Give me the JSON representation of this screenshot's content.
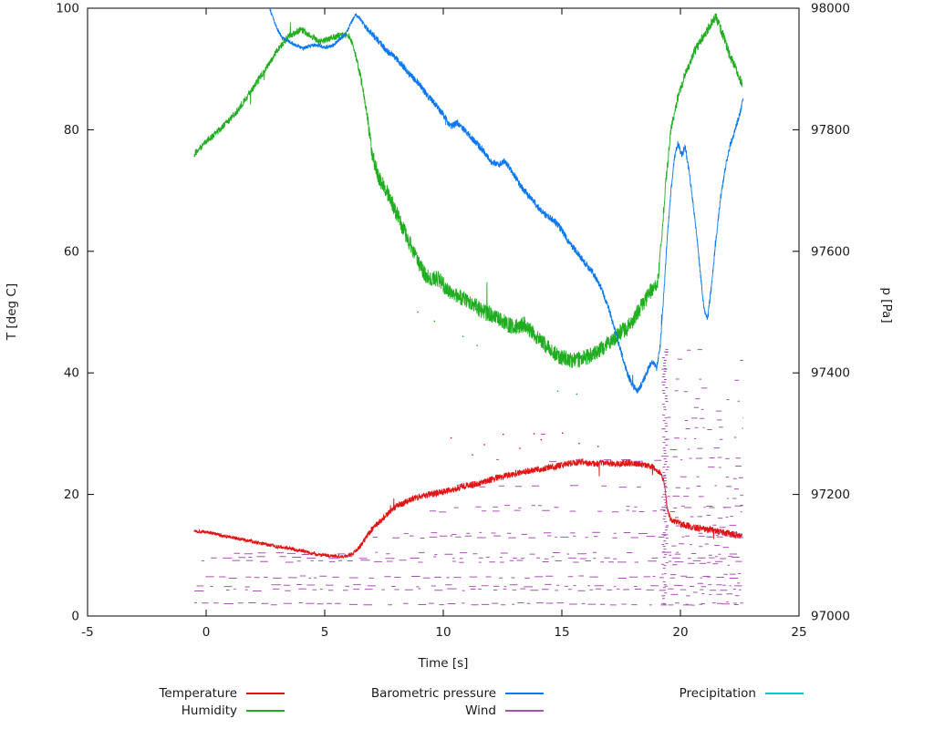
{
  "page": {
    "background": "#ffffff"
  },
  "chart_data": {
    "type": "line",
    "title": "",
    "xlabel": "Time [s]",
    "ylabel_left": "T [deg C]",
    "ylabel_right": "p [Pa]",
    "xlim": [
      -5,
      25
    ],
    "xticks": [
      -5,
      0,
      5,
      10,
      15,
      20,
      25
    ],
    "ylim_left": [
      0,
      100
    ],
    "yticks_left": [
      0,
      20,
      40,
      60,
      80,
      100
    ],
    "ylim_right": [
      97000,
      98000
    ],
    "yticks_right": [
      97000,
      97200,
      97400,
      97600,
      97800,
      98000
    ],
    "grid": false,
    "legend_position": "bottom",
    "series": [
      {
        "name": "Temperature",
        "color": "#e01414",
        "axis": "left",
        "noise": 0.45,
        "noise_x": [
          -0.5,
          6,
          7,
          22.6
        ],
        "noise_v": [
          0.3,
          0.3,
          0.55,
          0.55
        ],
        "x": [
          -0.5,
          0,
          1,
          2,
          3,
          4,
          4.7,
          5.3,
          5.8,
          6.2,
          6.5,
          7,
          7.5,
          8,
          8.7,
          9.4,
          10,
          10.8,
          11.5,
          12.3,
          13,
          13.8,
          14.5,
          15.2,
          15.8,
          16.3,
          16.8,
          17.3,
          17.8,
          18.3,
          18.8,
          19.1,
          19.3,
          19.45,
          19.6,
          20,
          20.5,
          21,
          21.5,
          22,
          22.6
        ],
        "y": [
          14,
          13.8,
          13,
          12.2,
          11.4,
          10.8,
          10.1,
          9.9,
          9.8,
          10.3,
          11.5,
          14.3,
          16.3,
          18,
          19.3,
          20,
          20.4,
          21.3,
          21.8,
          22.8,
          23.4,
          24,
          24.4,
          25,
          25.4,
          25,
          25.2,
          25,
          25.2,
          25,
          24.6,
          23.8,
          22.5,
          17.5,
          15.8,
          15.2,
          14.6,
          14.3,
          14,
          13.6,
          13.2
        ],
        "outliers": [
          [
            10.3,
            29.3
          ],
          [
            11.7,
            28.2
          ],
          [
            12.5,
            29.9
          ],
          [
            13.2,
            27.6
          ],
          [
            14.1,
            29.0
          ],
          [
            15.0,
            30.1
          ],
          [
            15.7,
            28.4
          ],
          [
            16.5,
            27.9
          ],
          [
            11.2,
            26.5
          ],
          [
            13.8,
            30.0
          ]
        ]
      },
      {
        "name": "Humidity",
        "color": "#1fae1f",
        "axis": "left",
        "noise": 1.1,
        "noise_x": [
          -0.5,
          6.3,
          7.2,
          18.9,
          19.6,
          22.6
        ],
        "noise_v": [
          0.55,
          0.55,
          1.35,
          1.35,
          0.8,
          0.8
        ],
        "x": [
          -0.5,
          0,
          0.7,
          1.3,
          2,
          2.5,
          3,
          3.5,
          4,
          4.4,
          4.8,
          5.2,
          5.6,
          6,
          6.2,
          6.5,
          6.8,
          7,
          7.3,
          7.6,
          8,
          8.4,
          8.8,
          9.1,
          9.4,
          9.8,
          10.2,
          10.7,
          11.2,
          11.7,
          12.2,
          12.7,
          13,
          13.4,
          13.8,
          14.2,
          14.6,
          15,
          15.5,
          16,
          16.5,
          17,
          17.4,
          17.8,
          18.2,
          18.6,
          18.9,
          19.05,
          19.2,
          19.4,
          19.6,
          19.9,
          20.2,
          20.6,
          21,
          21.3,
          21.5,
          21.8,
          22.1,
          22.4,
          22.6
        ],
        "y": [
          76,
          78,
          80.5,
          83,
          87,
          90,
          93,
          95.5,
          96.5,
          95.5,
          94.5,
          95,
          95.5,
          95.5,
          94,
          89,
          82,
          76,
          72,
          70,
          66.5,
          63,
          59.5,
          57,
          55.5,
          55.5,
          53.5,
          52.5,
          51.5,
          50,
          49.5,
          48,
          47.5,
          48,
          46.5,
          45,
          43.5,
          42.5,
          42,
          42.5,
          43.5,
          45,
          46.5,
          47.5,
          50,
          52.5,
          54.5,
          55,
          62,
          72,
          80,
          85.5,
          89,
          93,
          95.5,
          97.5,
          98.5,
          95.5,
          92,
          89.5,
          87.5
        ],
        "outliers": [
          [
            8.9,
            50
          ],
          [
            9.6,
            48.5
          ],
          [
            11.4,
            44.5
          ],
          [
            14.8,
            37
          ],
          [
            15.6,
            36.5
          ],
          [
            10.8,
            46
          ]
        ]
      },
      {
        "name": "Barometric pressure",
        "color": "#0a78f0",
        "axis": "right",
        "noise": 5,
        "noise_x": [
          2.65,
          6.5,
          7,
          22.65
        ],
        "noise_v": [
          3,
          3,
          5.5,
          5.5
        ],
        "x": [
          2.65,
          2.8,
          3,
          3.2,
          3.5,
          3.8,
          4.1,
          4.4,
          4.7,
          5,
          5.3,
          5.6,
          5.9,
          6.1,
          6.3,
          6.5,
          6.8,
          7,
          7.3,
          7.6,
          8,
          8.3,
          8.6,
          9,
          9.3,
          9.6,
          10,
          10.3,
          10.6,
          11,
          11.3,
          11.7,
          12,
          12.3,
          12.6,
          13,
          13.3,
          13.7,
          14,
          14.3,
          14.7,
          15,
          15.3,
          15.7,
          16,
          16.3,
          16.6,
          16.9,
          17.1,
          17.35,
          17.6,
          17.8,
          18,
          18.2,
          18.4,
          18.6,
          18.8,
          19,
          19.15,
          19.3,
          19.45,
          19.6,
          19.75,
          19.9,
          20.05,
          20.2,
          20.35,
          20.5,
          20.7,
          20.85,
          21,
          21.15,
          21.3,
          21.5,
          21.7,
          21.9,
          22.1,
          22.3,
          22.5,
          22.65
        ],
        "y": [
          98005,
          97985,
          97965,
          97952,
          97945,
          97938,
          97934,
          97938,
          97940,
          97935,
          97938,
          97948,
          97958,
          97975,
          97990,
          97982,
          97965,
          97958,
          97945,
          97930,
          97918,
          97905,
          97890,
          97875,
          97858,
          97845,
          97825,
          97805,
          97812,
          97795,
          97782,
          97765,
          97748,
          97742,
          97748,
          97725,
          97705,
          97688,
          97672,
          97660,
          97650,
          97635,
          97615,
          97595,
          97580,
          97565,
          97545,
          97515,
          97490,
          97455,
          97420,
          97395,
          97378,
          97370,
          97385,
          97402,
          97420,
          97408,
          97445,
          97530,
          97625,
          97700,
          97755,
          97778,
          97758,
          97772,
          97735,
          97690,
          97620,
          97560,
          97505,
          97490,
          97540,
          97620,
          97690,
          97740,
          97775,
          97800,
          97825,
          97850
        ]
      },
      {
        "name": "Wind",
        "color": "#a851b4",
        "axis": "left",
        "style": "dashes",
        "bands": [
          {
            "y": 2.0,
            "x0": -0.5,
            "x1": 22.6,
            "density": 0.85
          },
          {
            "y": 4.3,
            "x0": -0.5,
            "x1": 22.6,
            "density": 0.75
          },
          {
            "y": 5.0,
            "x0": -0.4,
            "x1": 22.6,
            "density": 0.45
          },
          {
            "y": 6.4,
            "x0": -0.3,
            "x1": 22.6,
            "density": 0.6
          },
          {
            "y": 9.0,
            "x0": -0.2,
            "x1": 22.6,
            "density": 0.5
          },
          {
            "y": 9.6,
            "x0": 0.2,
            "x1": 22.6,
            "density": 0.5
          },
          {
            "y": 10.3,
            "x0": 1.0,
            "x1": 22.6,
            "density": 0.3
          },
          {
            "y": 13.0,
            "x0": 6.5,
            "x1": 22.6,
            "density": 0.45
          },
          {
            "y": 13.6,
            "x0": 8.0,
            "x1": 22.6,
            "density": 0.3
          },
          {
            "y": 17.3,
            "x0": 8.5,
            "x1": 22.6,
            "density": 0.35
          },
          {
            "y": 18.0,
            "x0": 10.0,
            "x1": 22.6,
            "density": 0.25
          },
          {
            "y": 21.4,
            "x0": 10.5,
            "x1": 19.2,
            "density": 0.2
          },
          {
            "y": 25.6,
            "x0": 11.5,
            "x1": 19.2,
            "density": 0.15
          },
          {
            "y": 29.8,
            "x0": 10.0,
            "x1": 19.2,
            "density": 0.1
          }
        ],
        "cluster": {
          "x0": 19.2,
          "x1": 22.65,
          "ymin": 2,
          "ymax": 45,
          "step": 1.6,
          "edge_x": 19.3
        }
      },
      {
        "name": "Precipitation",
        "color": "#00c8d2",
        "axis": "left",
        "x": [],
        "y": []
      }
    ]
  }
}
